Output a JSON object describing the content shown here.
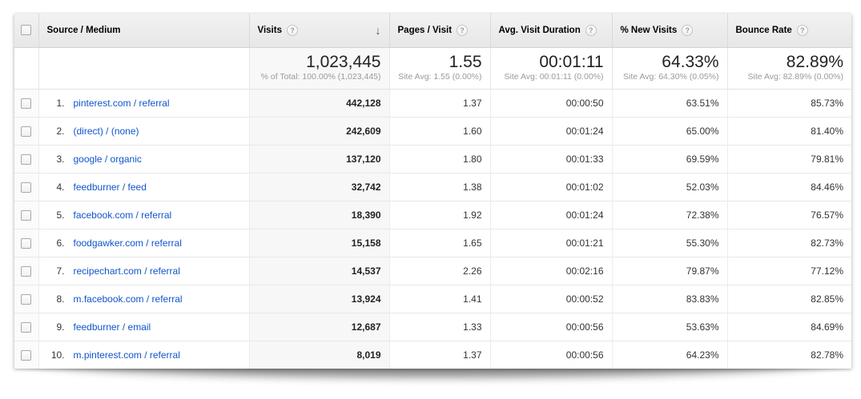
{
  "table": {
    "columns": [
      {
        "label": "Source / Medium",
        "help": false,
        "sorted": false
      },
      {
        "label": "Visits",
        "help": true,
        "sorted": true
      },
      {
        "label": "Pages / Visit",
        "help": true,
        "sorted": false
      },
      {
        "label": "Avg. Visit Duration",
        "help": true,
        "sorted": false
      },
      {
        "label": "% New Visits",
        "help": true,
        "sorted": false
      },
      {
        "label": "Bounce Rate",
        "help": true,
        "sorted": false
      }
    ],
    "summary": {
      "visits": "1,023,445",
      "visits_sub": "% of Total: 100.00% (1,023,445)",
      "pages_per_visit": "1.55",
      "pages_per_visit_sub": "Site Avg: 1.55 (0.00%)",
      "avg_visit_duration": "00:01:11",
      "avg_visit_duration_sub": "Site Avg: 00:01:11 (0.00%)",
      "pct_new_visits": "64.33%",
      "pct_new_visits_sub": "Site Avg: 64.30% (0.05%)",
      "bounce_rate": "82.89%",
      "bounce_rate_sub": "Site Avg: 82.89% (0.00%)"
    },
    "rows": [
      {
        "rank": "1.",
        "source": "pinterest.com / referral",
        "visits": "442,128",
        "pages_per_visit": "1.37",
        "avg_visit_duration": "00:00:50",
        "pct_new_visits": "63.51%",
        "bounce_rate": "85.73%"
      },
      {
        "rank": "2.",
        "source": "(direct) / (none)",
        "visits": "242,609",
        "pages_per_visit": "1.60",
        "avg_visit_duration": "00:01:24",
        "pct_new_visits": "65.00%",
        "bounce_rate": "81.40%"
      },
      {
        "rank": "3.",
        "source": "google / organic",
        "visits": "137,120",
        "pages_per_visit": "1.80",
        "avg_visit_duration": "00:01:33",
        "pct_new_visits": "69.59%",
        "bounce_rate": "79.81%"
      },
      {
        "rank": "4.",
        "source": "feedburner / feed",
        "visits": "32,742",
        "pages_per_visit": "1.38",
        "avg_visit_duration": "00:01:02",
        "pct_new_visits": "52.03%",
        "bounce_rate": "84.46%"
      },
      {
        "rank": "5.",
        "source": "facebook.com / referral",
        "visits": "18,390",
        "pages_per_visit": "1.92",
        "avg_visit_duration": "00:01:24",
        "pct_new_visits": "72.38%",
        "bounce_rate": "76.57%"
      },
      {
        "rank": "6.",
        "source": "foodgawker.com / referral",
        "visits": "15,158",
        "pages_per_visit": "1.65",
        "avg_visit_duration": "00:01:21",
        "pct_new_visits": "55.30%",
        "bounce_rate": "82.73%"
      },
      {
        "rank": "7.",
        "source": "recipechart.com / referral",
        "visits": "14,537",
        "pages_per_visit": "2.26",
        "avg_visit_duration": "00:02:16",
        "pct_new_visits": "79.87%",
        "bounce_rate": "77.12%"
      },
      {
        "rank": "8.",
        "source": "m.facebook.com / referral",
        "visits": "13,924",
        "pages_per_visit": "1.41",
        "avg_visit_duration": "00:00:52",
        "pct_new_visits": "83.83%",
        "bounce_rate": "82.85%"
      },
      {
        "rank": "9.",
        "source": "feedburner / email",
        "visits": "12,687",
        "pages_per_visit": "1.33",
        "avg_visit_duration": "00:00:56",
        "pct_new_visits": "53.63%",
        "bounce_rate": "84.69%"
      },
      {
        "rank": "10.",
        "source": "m.pinterest.com / referral",
        "visits": "8,019",
        "pages_per_visit": "1.37",
        "avg_visit_duration": "00:00:56",
        "pct_new_visits": "64.23%",
        "bounce_rate": "82.78%"
      }
    ]
  },
  "icons": {
    "help": "?",
    "sort_descending": "↓"
  },
  "colors": {
    "link": "#1155cc",
    "header_bg_top": "#f2f2f2",
    "header_bg_bottom": "#e7e7e7",
    "sorted_column_bg": "#f7f7f7",
    "row_border": "#e8e8e8",
    "subtext_gray": "#9a9a9a"
  }
}
